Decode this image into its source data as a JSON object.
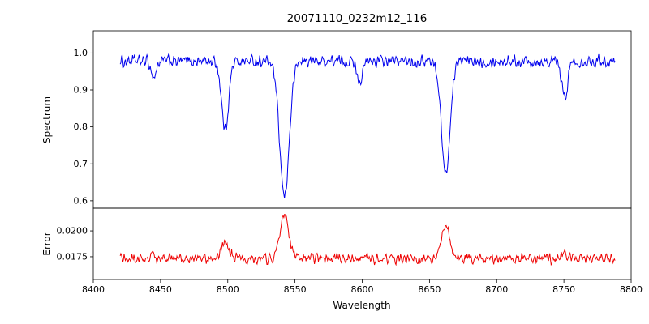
{
  "title": "20071110_0232m12_116",
  "chart_data": {
    "type": "line",
    "title": "20071110_0232m12_116",
    "xlabel": "Wavelength",
    "xlim": [
      8400,
      8800
    ],
    "x_range": [
      8420,
      8788
    ],
    "x_ticks": [
      {
        "v": 8400,
        "label": "8400"
      },
      {
        "v": 8450,
        "label": "8450"
      },
      {
        "v": 8500,
        "label": "8500"
      },
      {
        "v": 8550,
        "label": "8550"
      },
      {
        "v": 8600,
        "label": "8600"
      },
      {
        "v": 8650,
        "label": "8650"
      },
      {
        "v": 8700,
        "label": "8700"
      },
      {
        "v": 8750,
        "label": "8750"
      },
      {
        "v": 8800,
        "label": "8800"
      }
    ],
    "panels": [
      {
        "ylabel": "Spectrum",
        "color": "#0000ee",
        "ylim": [
          0.58,
          1.06
        ],
        "y_ticks": [
          {
            "v": 1.0,
            "label": "1.0"
          },
          {
            "v": 0.9,
            "label": "0.9"
          },
          {
            "v": 0.8,
            "label": "0.8"
          },
          {
            "v": 0.7,
            "label": "0.7"
          },
          {
            "v": 0.6,
            "label": "0.6"
          }
        ],
        "continuum": 0.978,
        "noise_amp": 0.013,
        "features": [
          {
            "center": 8445.0,
            "depth": 0.045,
            "sigma": 1.8
          },
          {
            "center": 8498.0,
            "depth": 0.185,
            "sigma": 2.6
          },
          {
            "center": 8542.1,
            "depth": 0.365,
            "sigma": 3.6
          },
          {
            "center": 8598.4,
            "depth": 0.055,
            "sigma": 2.0
          },
          {
            "center": 8662.1,
            "depth": 0.305,
            "sigma": 3.2
          },
          {
            "center": 8750.5,
            "depth": 0.1,
            "sigma": 2.2
          }
        ]
      },
      {
        "ylabel": "Error",
        "color": "#ee0000",
        "ylim": [
          0.0153,
          0.0222
        ],
        "y_ticks": [
          {
            "v": 0.02,
            "label": "0.0200"
          },
          {
            "v": 0.0175,
            "label": "0.0175"
          }
        ],
        "baseline": 0.0173,
        "noise_amp": 0.0004,
        "features": [
          {
            "center": 8445.0,
            "amp": 0.0003,
            "sigma": 2.0
          },
          {
            "center": 8498.0,
            "amp": 0.0016,
            "sigma": 3.0
          },
          {
            "center": 8542.1,
            "amp": 0.0043,
            "sigma": 3.2
          },
          {
            "center": 8598.4,
            "amp": 0.0004,
            "sigma": 2.0
          },
          {
            "center": 8662.1,
            "amp": 0.0034,
            "sigma": 3.0
          },
          {
            "center": 8750.5,
            "amp": 0.0006,
            "sigma": 2.5
          }
        ]
      }
    ]
  }
}
